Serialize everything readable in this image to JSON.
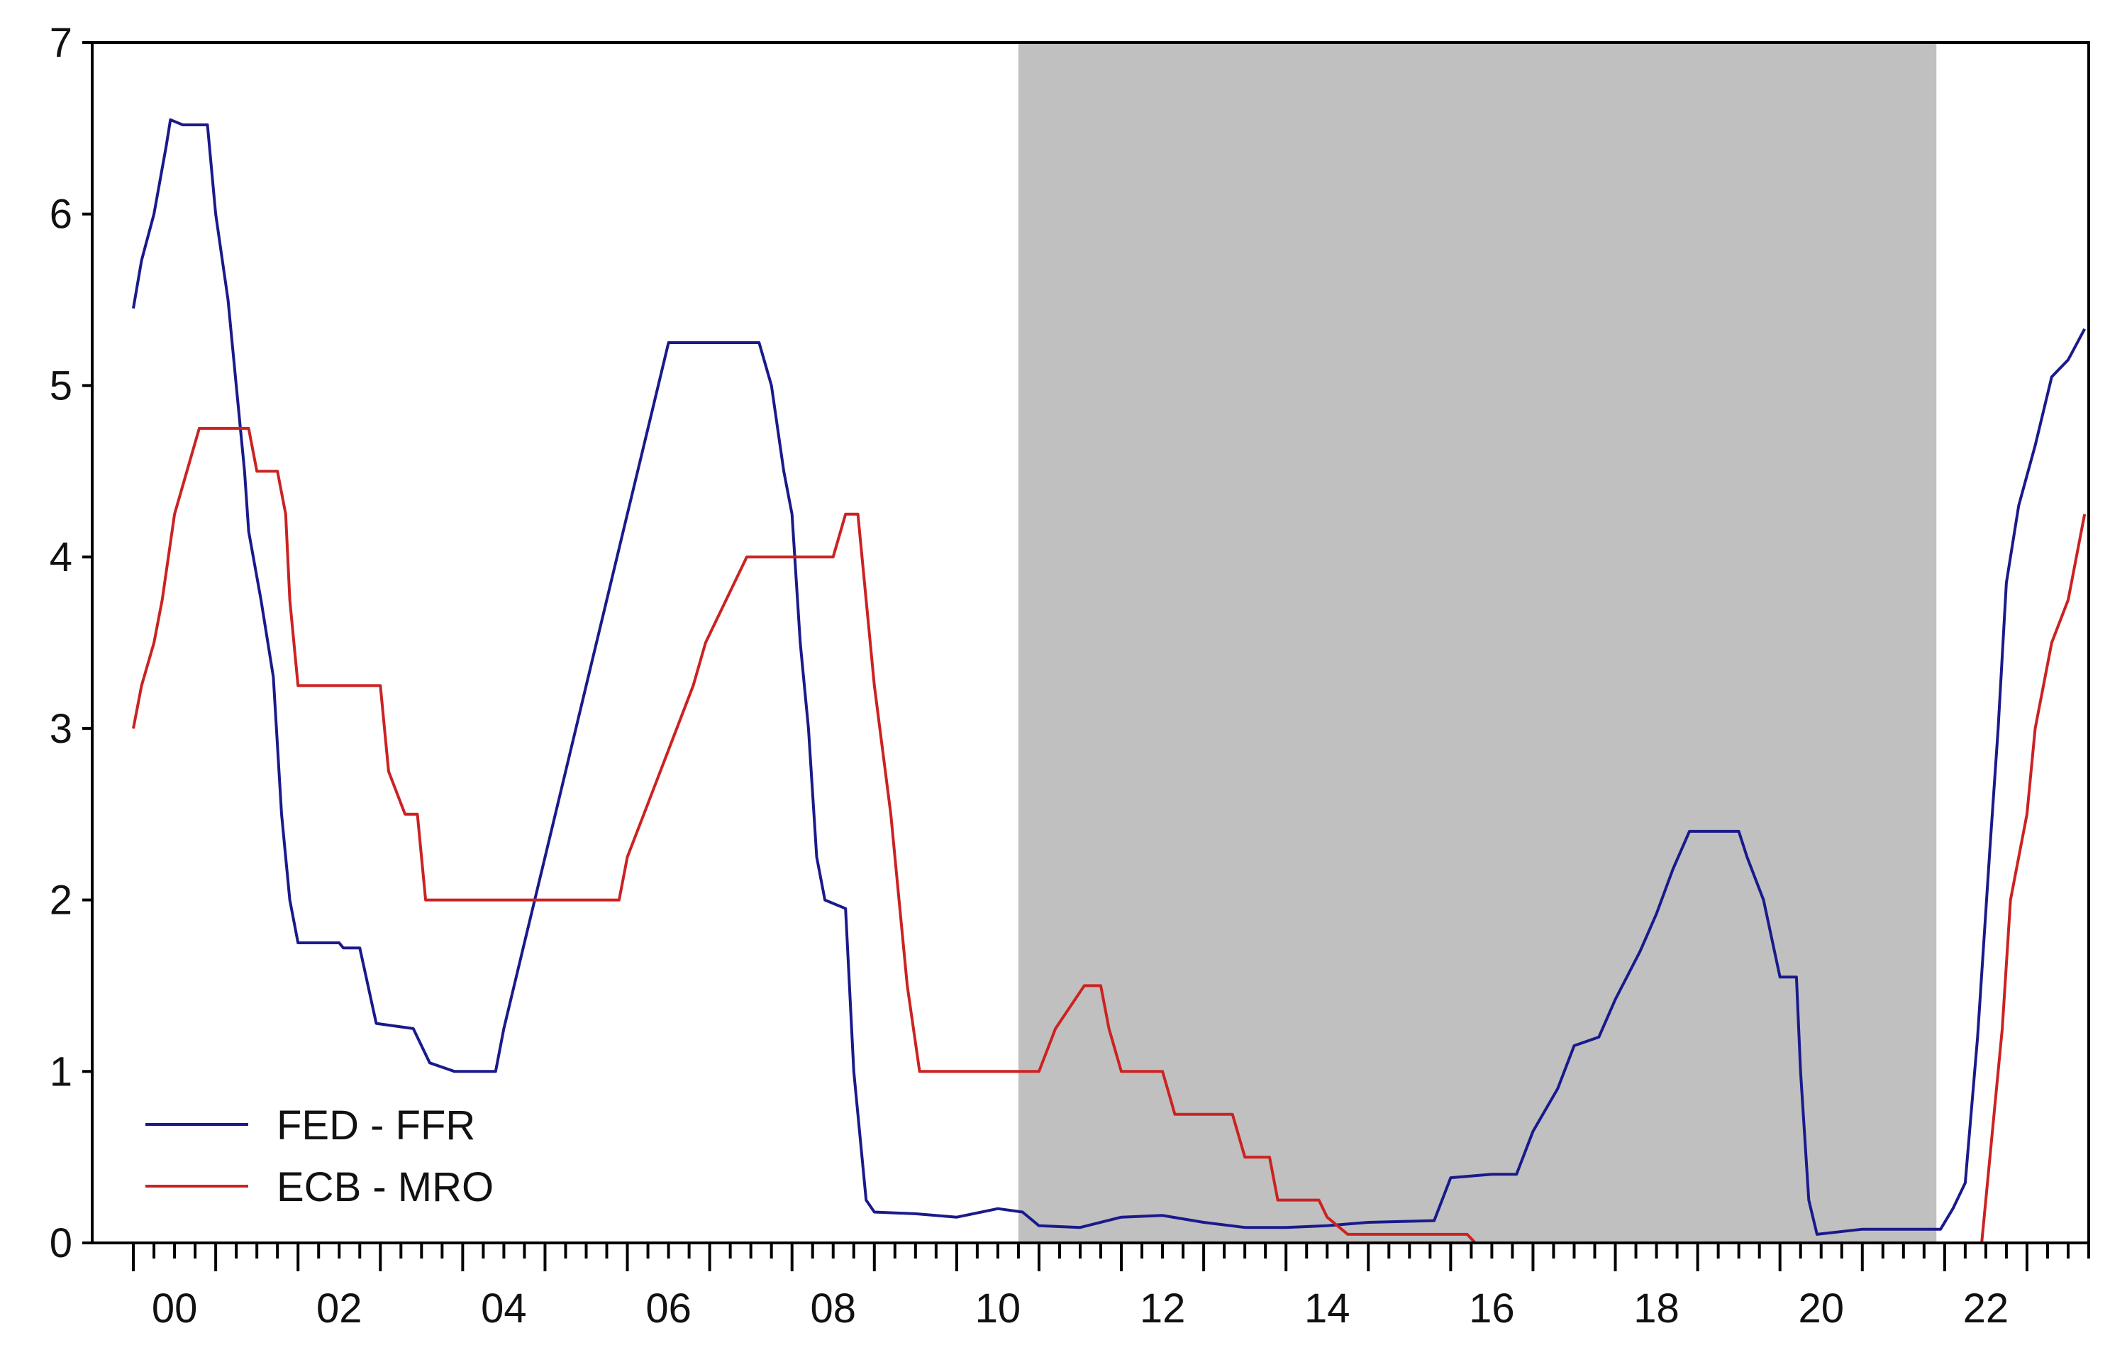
{
  "chart_data": {
    "type": "line",
    "title": "",
    "xlabel": "",
    "ylabel": "",
    "xlim": [
      1999.5,
      2023.75
    ],
    "ylim": [
      0,
      7
    ],
    "yticks": [
      "0",
      "1",
      "2",
      "3",
      "4",
      "5",
      "6",
      "7"
    ],
    "xticks": [
      "00",
      "02",
      "04",
      "06",
      "08",
      "10",
      "12",
      "14",
      "16",
      "18",
      "20",
      "22"
    ],
    "grid": false,
    "legend_position": "bottom-left",
    "shaded_region": {
      "x": [
        2010.75,
        2021.9
      ],
      "color": "#c0c0c0"
    },
    "series": [
      {
        "name": "FED - FFR",
        "color": "#1a1a8c",
        "points": [
          [
            2000.0,
            5.45
          ],
          [
            2000.1,
            5.73
          ],
          [
            2000.25,
            6.0
          ],
          [
            2000.4,
            6.4
          ],
          [
            2000.45,
            6.55
          ],
          [
            2000.6,
            6.52
          ],
          [
            2000.9,
            6.52
          ],
          [
            2001.0,
            6.0
          ],
          [
            2001.15,
            5.5
          ],
          [
            2001.25,
            5.0
          ],
          [
            2001.35,
            4.5
          ],
          [
            2001.4,
            4.15
          ],
          [
            2001.55,
            3.75
          ],
          [
            2001.7,
            3.3
          ],
          [
            2001.8,
            2.5
          ],
          [
            2001.9,
            2.0
          ],
          [
            2002.0,
            1.75
          ],
          [
            2002.5,
            1.75
          ],
          [
            2002.55,
            1.72
          ],
          [
            2002.75,
            1.72
          ],
          [
            2002.85,
            1.5
          ],
          [
            2002.95,
            1.28
          ],
          [
            2003.4,
            1.25
          ],
          [
            2003.6,
            1.05
          ],
          [
            2003.9,
            1.0
          ],
          [
            2004.4,
            1.0
          ],
          [
            2004.5,
            1.25
          ],
          [
            2004.75,
            1.75
          ],
          [
            2005.0,
            2.25
          ],
          [
            2005.25,
            2.75
          ],
          [
            2005.5,
            3.25
          ],
          [
            2005.75,
            3.75
          ],
          [
            2006.0,
            4.25
          ],
          [
            2006.25,
            4.75
          ],
          [
            2006.5,
            5.25
          ],
          [
            2007.6,
            5.25
          ],
          [
            2007.75,
            5.0
          ],
          [
            2007.9,
            4.5
          ],
          [
            2008.0,
            4.25
          ],
          [
            2008.1,
            3.5
          ],
          [
            2008.2,
            3.0
          ],
          [
            2008.3,
            2.25
          ],
          [
            2008.4,
            2.0
          ],
          [
            2008.65,
            1.95
          ],
          [
            2008.75,
            1.0
          ],
          [
            2008.9,
            0.25
          ],
          [
            2009.0,
            0.18
          ],
          [
            2009.5,
            0.17
          ],
          [
            2010.0,
            0.15
          ],
          [
            2010.5,
            0.2
          ],
          [
            2010.8,
            0.18
          ],
          [
            2011.0,
            0.1
          ],
          [
            2011.5,
            0.09
          ],
          [
            2012.0,
            0.15
          ],
          [
            2012.5,
            0.16
          ],
          [
            2013.0,
            0.12
          ],
          [
            2013.5,
            0.09
          ],
          [
            2014.0,
            0.09
          ],
          [
            2014.5,
            0.1
          ],
          [
            2015.0,
            0.12
          ],
          [
            2015.8,
            0.13
          ],
          [
            2016.0,
            0.38
          ],
          [
            2016.5,
            0.4
          ],
          [
            2016.8,
            0.4
          ],
          [
            2017.0,
            0.65
          ],
          [
            2017.3,
            0.9
          ],
          [
            2017.5,
            1.15
          ],
          [
            2017.8,
            1.2
          ],
          [
            2018.0,
            1.42
          ],
          [
            2018.3,
            1.7
          ],
          [
            2018.5,
            1.92
          ],
          [
            2018.7,
            2.18
          ],
          [
            2018.9,
            2.4
          ],
          [
            2019.5,
            2.4
          ],
          [
            2019.6,
            2.25
          ],
          [
            2019.8,
            2.0
          ],
          [
            2020.0,
            1.55
          ],
          [
            2020.2,
            1.55
          ],
          [
            2020.25,
            1.0
          ],
          [
            2020.35,
            0.25
          ],
          [
            2020.45,
            0.05
          ],
          [
            2021.0,
            0.08
          ],
          [
            2021.5,
            0.08
          ],
          [
            2021.95,
            0.08
          ],
          [
            2022.1,
            0.2
          ],
          [
            2022.25,
            0.35
          ],
          [
            2022.4,
            1.2
          ],
          [
            2022.55,
            2.3
          ],
          [
            2022.65,
            3.0
          ],
          [
            2022.75,
            3.85
          ],
          [
            2022.9,
            4.3
          ],
          [
            2023.1,
            4.65
          ],
          [
            2023.3,
            5.05
          ],
          [
            2023.5,
            5.15
          ],
          [
            2023.7,
            5.33
          ]
        ]
      },
      {
        "name": "ECB - MRO",
        "color": "#cc2222",
        "points": [
          [
            2000.0,
            3.0
          ],
          [
            2000.1,
            3.25
          ],
          [
            2000.25,
            3.5
          ],
          [
            2000.35,
            3.75
          ],
          [
            2000.5,
            4.25
          ],
          [
            2000.65,
            4.5
          ],
          [
            2000.8,
            4.75
          ],
          [
            2001.4,
            4.75
          ],
          [
            2001.5,
            4.5
          ],
          [
            2001.75,
            4.5
          ],
          [
            2001.85,
            4.25
          ],
          [
            2001.9,
            3.75
          ],
          [
            2002.0,
            3.25
          ],
          [
            2003.0,
            3.25
          ],
          [
            2003.1,
            2.75
          ],
          [
            2003.3,
            2.5
          ],
          [
            2003.45,
            2.5
          ],
          [
            2003.55,
            2.0
          ],
          [
            2005.9,
            2.0
          ],
          [
            2006.0,
            2.25
          ],
          [
            2006.2,
            2.5
          ],
          [
            2006.4,
            2.75
          ],
          [
            2006.6,
            3.0
          ],
          [
            2006.8,
            3.25
          ],
          [
            2006.95,
            3.5
          ],
          [
            2007.2,
            3.75
          ],
          [
            2007.45,
            4.0
          ],
          [
            2008.5,
            4.0
          ],
          [
            2008.65,
            4.25
          ],
          [
            2008.8,
            4.25
          ],
          [
            2008.9,
            3.75
          ],
          [
            2009.0,
            3.25
          ],
          [
            2009.2,
            2.5
          ],
          [
            2009.3,
            2.0
          ],
          [
            2009.4,
            1.5
          ],
          [
            2009.55,
            1.0
          ],
          [
            2011.0,
            1.0
          ],
          [
            2011.2,
            1.25
          ],
          [
            2011.55,
            1.5
          ],
          [
            2011.75,
            1.5
          ],
          [
            2011.85,
            1.25
          ],
          [
            2012.0,
            1.0
          ],
          [
            2012.5,
            1.0
          ],
          [
            2012.65,
            0.75
          ],
          [
            2013.35,
            0.75
          ],
          [
            2013.5,
            0.5
          ],
          [
            2013.8,
            0.5
          ],
          [
            2013.9,
            0.25
          ],
          [
            2014.4,
            0.25
          ],
          [
            2014.5,
            0.15
          ],
          [
            2014.75,
            0.05
          ],
          [
            2016.2,
            0.05
          ],
          [
            2016.3,
            0.0
          ],
          [
            2022.45,
            0.0
          ],
          [
            2022.55,
            0.5
          ],
          [
            2022.7,
            1.25
          ],
          [
            2022.8,
            2.0
          ],
          [
            2023.0,
            2.5
          ],
          [
            2023.1,
            3.0
          ],
          [
            2023.3,
            3.5
          ],
          [
            2023.5,
            3.75
          ],
          [
            2023.7,
            4.25
          ]
        ]
      }
    ]
  }
}
